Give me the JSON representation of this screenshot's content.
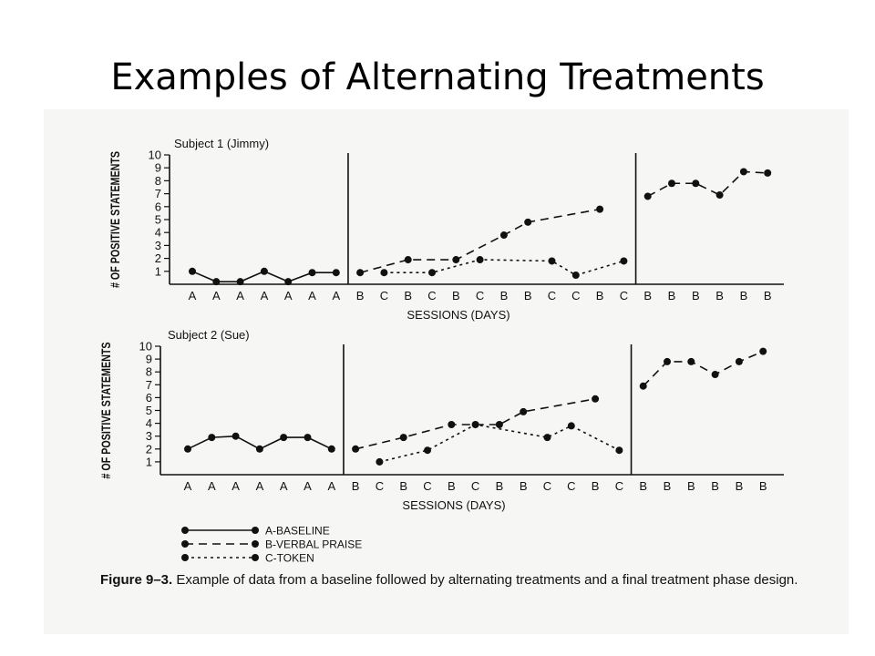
{
  "slide_title": "Examples of Alternating Treatments",
  "caption": {
    "label": "Figure 9–3.",
    "text": "Example of data from a baseline followed by alternating treatments and a final treatment phase design."
  },
  "legend": [
    {
      "name": "A-BASELINE",
      "style": "solid"
    },
    {
      "name": "B-VERBAL PRAISE",
      "style": "dashed"
    },
    {
      "name": "C-TOKEN",
      "style": "dotted"
    }
  ],
  "chart_data": [
    {
      "type": "line",
      "title": "Subject 1 (Jimmy)",
      "xlabel": "SESSIONS (DAYS)",
      "ylabel": "# OF POSITIVE STATEMENTS",
      "ylim": [
        0,
        10
      ],
      "yticks": [
        1,
        2,
        3,
        4,
        5,
        6,
        7,
        8,
        9,
        10
      ],
      "categories": [
        "A",
        "A",
        "A",
        "A",
        "A",
        "A",
        "A",
        "B",
        "C",
        "B",
        "C",
        "B",
        "C",
        "B",
        "B",
        "C",
        "C",
        "B",
        "C",
        "B",
        "B",
        "B",
        "B",
        "B",
        "B"
      ],
      "phase_lines_after": [
        7,
        19
      ],
      "series": [
        {
          "name": "A-BASELINE",
          "style": "solid",
          "points": [
            [
              1,
              1
            ],
            [
              2,
              0.2
            ],
            [
              3,
              0.2
            ],
            [
              4,
              1
            ],
            [
              5,
              0.2
            ],
            [
              6,
              0.9
            ],
            [
              7,
              0.9
            ]
          ]
        },
        {
          "name": "B-VERBAL PRAISE",
          "style": "dashed",
          "points": [
            [
              8,
              0.9
            ],
            [
              10,
              1.9
            ],
            [
              12,
              1.9
            ],
            [
              14,
              3.8
            ],
            [
              15,
              4.8
            ],
            [
              18,
              5.8
            ]
          ]
        },
        {
          "name": "C-TOKEN",
          "style": "dotted",
          "points": [
            [
              9,
              0.9
            ],
            [
              11,
              0.9
            ],
            [
              13,
              1.9
            ],
            [
              16,
              1.8
            ],
            [
              17,
              0.7
            ],
            [
              19,
              1.8
            ]
          ]
        },
        {
          "name": "B-VERBAL PRAISE",
          "style": "dashed",
          "points": [
            [
              20,
              6.8
            ],
            [
              21,
              7.8
            ],
            [
              22,
              7.8
            ],
            [
              23,
              6.9
            ],
            [
              24,
              8.7
            ],
            [
              25,
              8.6
            ]
          ]
        }
      ]
    },
    {
      "type": "line",
      "title": "Subject 2 (Sue)",
      "xlabel": "SESSIONS (DAYS)",
      "ylabel": "# OF POSITIVE STATEMENTS",
      "ylim": [
        0,
        10
      ],
      "yticks": [
        1,
        2,
        3,
        4,
        5,
        6,
        7,
        8,
        9,
        10
      ],
      "categories": [
        "A",
        "A",
        "A",
        "A",
        "A",
        "A",
        "A",
        "B",
        "C",
        "B",
        "C",
        "B",
        "C",
        "B",
        "B",
        "C",
        "C",
        "B",
        "C",
        "B",
        "B",
        "B",
        "B",
        "B",
        "B"
      ],
      "phase_lines_after": [
        7,
        19
      ],
      "series": [
        {
          "name": "A-BASELINE",
          "style": "solid",
          "points": [
            [
              1,
              2
            ],
            [
              2,
              2.9
            ],
            [
              3,
              3
            ],
            [
              4,
              2
            ],
            [
              5,
              2.9
            ],
            [
              6,
              2.9
            ],
            [
              7,
              2
            ]
          ]
        },
        {
          "name": "B-VERBAL PRAISE",
          "style": "dashed",
          "points": [
            [
              8,
              2
            ],
            [
              10,
              2.9
            ],
            [
              12,
              3.9
            ],
            [
              14,
              3.9
            ],
            [
              15,
              4.9
            ],
            [
              18,
              5.9
            ]
          ]
        },
        {
          "name": "C-TOKEN",
          "style": "dotted",
          "points": [
            [
              9,
              1
            ],
            [
              11,
              1.9
            ],
            [
              13,
              3.9
            ],
            [
              16,
              2.9
            ],
            [
              17,
              3.8
            ],
            [
              19,
              1.9
            ]
          ]
        },
        {
          "name": "B-VERBAL PRAISE",
          "style": "dashed",
          "points": [
            [
              20,
              6.9
            ],
            [
              21,
              8.8
            ],
            [
              22,
              8.8
            ],
            [
              23,
              7.8
            ],
            [
              24,
              8.8
            ],
            [
              25,
              9.6
            ]
          ]
        }
      ]
    }
  ]
}
